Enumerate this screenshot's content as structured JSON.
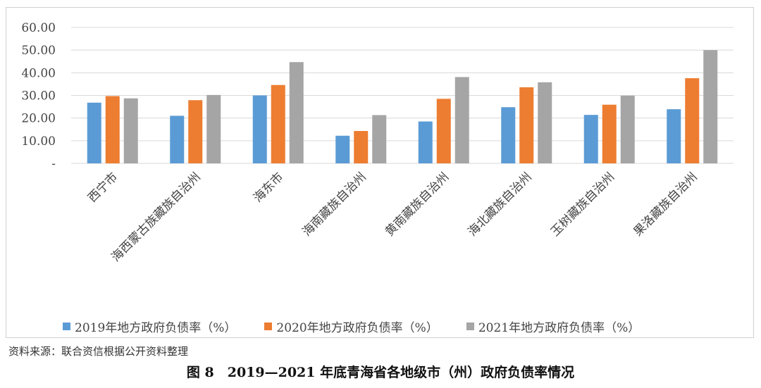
{
  "chart_data": {
    "type": "bar",
    "title": "",
    "xlabel": "",
    "ylabel": "",
    "categories": [
      "西宁市",
      "海西蒙古族藏族自治州",
      "海东市",
      "海南藏族自治州",
      "黄南藏族自治州",
      "海北藏族自治州",
      "玉树藏族自治州",
      "果洛藏族自治州"
    ],
    "series": [
      {
        "name": "2019年地方政府负债率（%）",
        "color": "#5b9bd5",
        "values": [
          26.8,
          21.0,
          30.0,
          12.2,
          18.5,
          24.8,
          21.4,
          23.9
        ]
      },
      {
        "name": "2020年地方政府负债率（%）",
        "color": "#ed7d31",
        "values": [
          29.7,
          27.9,
          34.6,
          14.3,
          28.5,
          33.6,
          25.9,
          37.6
        ]
      },
      {
        "name": "2021年地方政府负债率（%）",
        "color": "#a5a5a5",
        "values": [
          28.7,
          30.2,
          44.7,
          21.3,
          38.1,
          35.8,
          29.9,
          50.0
        ]
      }
    ],
    "ylim": [
      0,
      60
    ],
    "yticks": [
      "-",
      "10.00",
      "20.00",
      "30.00",
      "40.00",
      "50.00",
      "60.00"
    ],
    "grid": true,
    "legend_position": "bottom"
  },
  "source_text": "资料来源：联合资信根据公开资料整理",
  "caption_text": "图 8　2019—2021 年底青海省各地级市（州）政府负债率情况"
}
